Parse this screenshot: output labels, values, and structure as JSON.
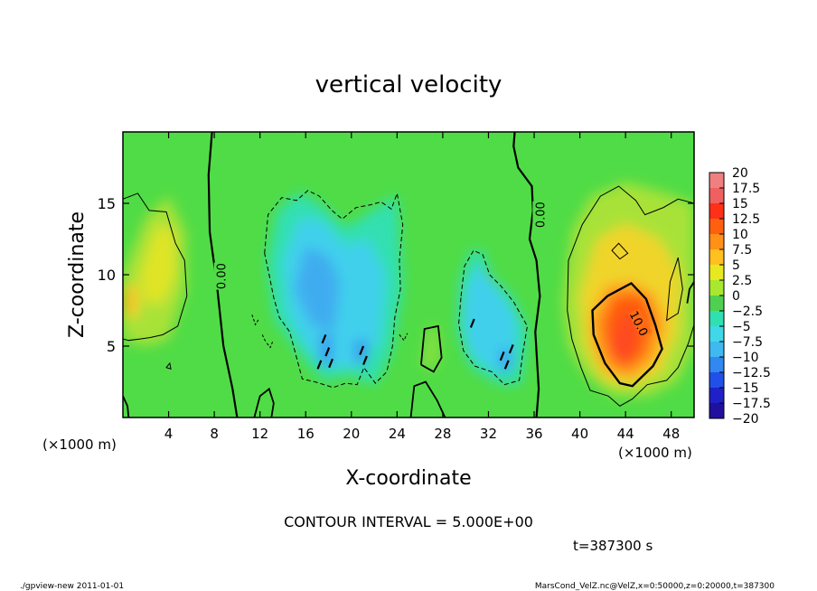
{
  "chart_data": {
    "type": "heatmap",
    "title": "vertical velocity",
    "xlabel": "X-coordinate",
    "ylabel": "Z-coordinate",
    "x_unit_label": "(×1000 m)",
    "y_unit_label": "(×1000 m)",
    "x_ticks": [
      4,
      8,
      12,
      16,
      20,
      24,
      28,
      32,
      36,
      40,
      44,
      48
    ],
    "y_ticks": [
      5,
      10,
      15
    ],
    "xlim": [
      0,
      50
    ],
    "ylim": [
      0,
      20
    ],
    "colorbar": {
      "labels": [
        "20",
        "17.5",
        "15",
        "12.5",
        "10",
        "7.5",
        "5",
        "2.5",
        "0",
        "−2.5",
        "−5",
        "−7.5",
        "−10",
        "−12.5",
        "−15",
        "−17.5",
        "−20"
      ],
      "colors": [
        "#f08080",
        "#f06060",
        "#ff3018",
        "#ff6010",
        "#ff9018",
        "#ffc020",
        "#e8e820",
        "#a8e830",
        "#50d050",
        "#30e0b0",
        "#40d8e8",
        "#40b8f0",
        "#3088f0",
        "#2050e8",
        "#2020c8",
        "#2010a0",
        "#5010a0"
      ]
    },
    "contour_interval_text": "CONTOUR INTERVAL = 5.000E+00",
    "contour_labels": [
      "0.00",
      "0.00",
      "10.0"
    ],
    "regions": [
      {
        "label": "updraft",
        "x": 4,
        "z": 11,
        "value": 7
      },
      {
        "label": "updraft",
        "x": 1,
        "z": 8,
        "value": 9
      },
      {
        "label": "downdraft",
        "x": 18,
        "z": 8,
        "value": -7
      },
      {
        "label": "downdraft",
        "x": 21,
        "z": 5,
        "value": -9
      },
      {
        "label": "downdraft",
        "x": 31,
        "z": 6,
        "value": -6
      },
      {
        "label": "updraft",
        "x": 44,
        "z": 6,
        "value": 14
      }
    ]
  },
  "time_label": "t=387300 s",
  "footer": {
    "left": "./gpview-new   2011-01-01",
    "right": "MarsCond_VelZ.nc@VelZ,x=0:50000,z=0:20000,t=387300"
  }
}
